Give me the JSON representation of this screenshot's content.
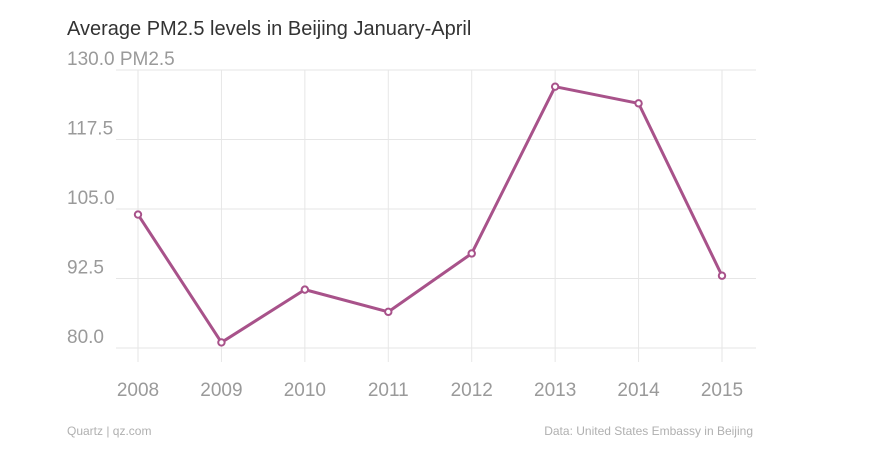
{
  "title": "Average PM2.5 levels in Beijing January-April",
  "footer": {
    "source_left": "Quartz | qz.com",
    "source_right": "Data: United States Embassy in Beijing"
  },
  "chart_data": {
    "type": "line",
    "title": "Average PM2.5 levels in Beijing January-April",
    "x": [
      "2008",
      "2009",
      "2010",
      "2011",
      "2012",
      "2013",
      "2014",
      "2015"
    ],
    "series": [
      {
        "values": [
          104.0,
          81.0,
          90.5,
          86.5,
          97.0,
          127.0,
          124.0,
          93.0
        ]
      }
    ],
    "y_ticks": [
      "80.0",
      "92.5",
      "105.0",
      "117.5",
      "130.0"
    ],
    "y_unit": "PM2.5",
    "ylim": [
      80,
      130
    ],
    "grid": true,
    "colors": {
      "line": "#a8528a",
      "grid": "#e6e6e6",
      "tick_text": "#9a9a9a"
    }
  }
}
